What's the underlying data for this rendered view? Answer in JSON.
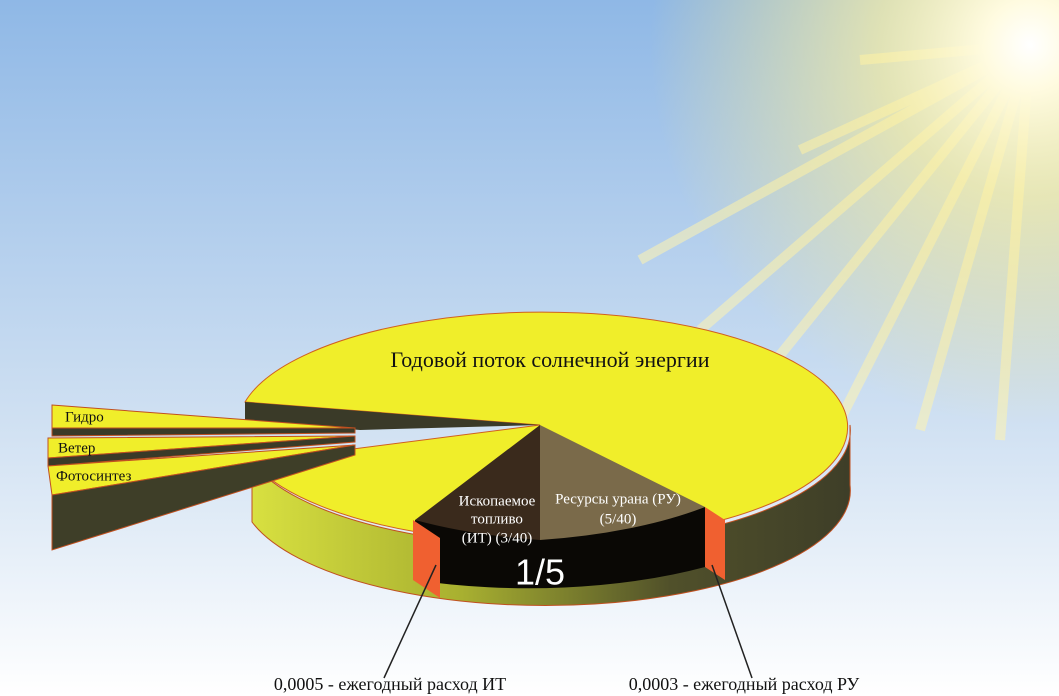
{
  "main_label": "Годовой поток солнечной энергии",
  "slices": [
    {
      "label": "Гидро"
    },
    {
      "label": "Ветер"
    },
    {
      "label": "Фотосинтез"
    }
  ],
  "sectors": [
    {
      "lines": [
        "Ископаемое",
        "топливо",
        "(ИТ) (3/40)"
      ]
    },
    {
      "lines": [
        "Ресурсы урана (РУ)",
        "(5/40)"
      ]
    }
  ],
  "center_label": "1/5",
  "callouts": [
    {
      "label": "0,0005 - ежегодный расход ИТ"
    },
    {
      "label": "0,0003 - ежегодный расход РУ"
    }
  ]
}
